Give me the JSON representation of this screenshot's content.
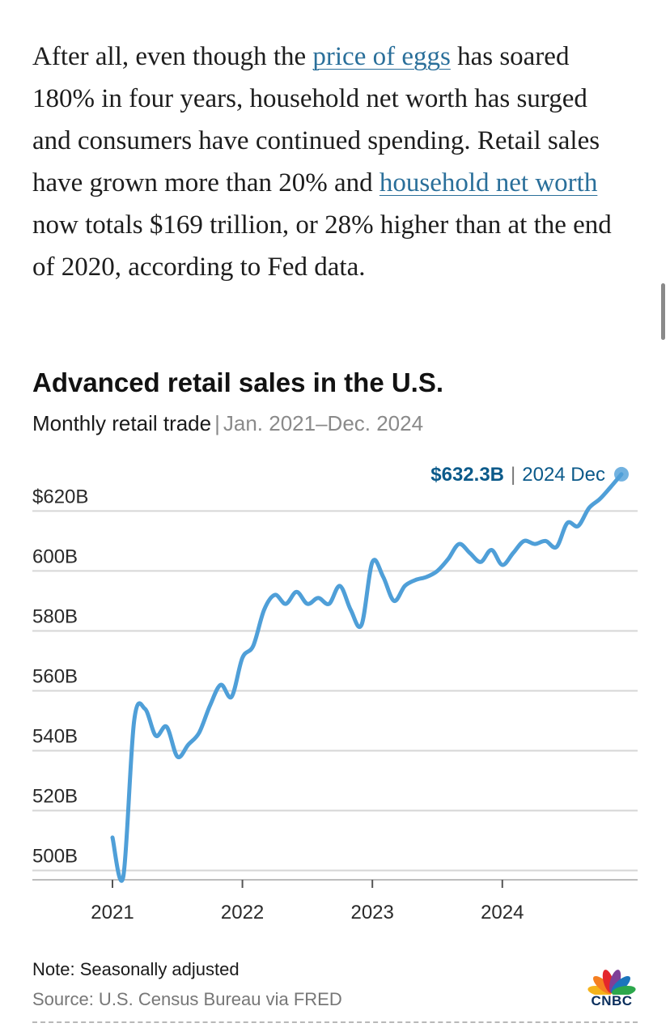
{
  "article": {
    "part1": "After all, even though the ",
    "link1": "price of eggs",
    "part2": " has soared 180% in four years, household net worth has surged and consumers have continued spending. Retail sales have grown more than 20% and ",
    "link2": "household net worth",
    "part3": " now totals $169 trillion, or 28% higher than at the end of 2020, according to Fed data."
  },
  "chart_data": {
    "type": "line",
    "title": "Advanced retail sales in the U.S.",
    "subtitle": "Monthly retail trade",
    "subtitle_sep": "|",
    "subtitle_range": "Jan. 2021–Dec. 2024",
    "xlabel": "",
    "ylabel": "",
    "ylim": [
      495,
      632
    ],
    "y_ticks": [
      620,
      600,
      580,
      560,
      540,
      520,
      500
    ],
    "y_tick_labels": [
      "$620B",
      "600B",
      "580B",
      "560B",
      "540B",
      "520B",
      "500B"
    ],
    "x_ticks": [
      2021,
      2022,
      2023,
      2024
    ],
    "x_tick_labels": [
      "2021",
      "2022",
      "2023",
      "2024"
    ],
    "grid": true,
    "color": "#4f9fd8",
    "highlight_color": "#0b5a8a",
    "series": [
      {
        "name": "Advanced retail sales",
        "x": [
          2021.0,
          2021.0833,
          2021.1667,
          2021.25,
          2021.3333,
          2021.4167,
          2021.5,
          2021.5833,
          2021.6667,
          2021.75,
          2021.8333,
          2021.9167,
          2022.0,
          2022.0833,
          2022.1667,
          2022.25,
          2022.3333,
          2022.4167,
          2022.5,
          2022.5833,
          2022.6667,
          2022.75,
          2022.8333,
          2022.9167,
          2023.0,
          2023.0833,
          2023.1667,
          2023.25,
          2023.3333,
          2023.4167,
          2023.5,
          2023.5833,
          2023.6667,
          2023.75,
          2023.8333,
          2023.9167,
          2024.0,
          2024.0833,
          2024.1667,
          2024.25,
          2024.3333,
          2024.4167,
          2024.5,
          2024.5833,
          2024.6667,
          2024.75,
          2024.8333,
          2024.9167
        ],
        "values": [
          511,
          498,
          550,
          554,
          545,
          548,
          538,
          542,
          546,
          555,
          562,
          558,
          571,
          575,
          587,
          592,
          589,
          593,
          589,
          591,
          589,
          595,
          587,
          582,
          603,
          598,
          590,
          595,
          597,
          598,
          600,
          604,
          609,
          606,
          603,
          607,
          602,
          606,
          610,
          609,
          610,
          608,
          616,
          615,
          621,
          624,
          628,
          632.3
        ]
      }
    ],
    "annotation": {
      "value_label": "$632.3B",
      "separator": "|",
      "period_label": "2024 Dec"
    },
    "note": "Note: Seasonally adjusted",
    "source": "Source: U.S. Census Bureau via FRED"
  },
  "logo": {
    "text": "CNBC",
    "colors": [
      "#f5b31b",
      "#f57f21",
      "#e4262c",
      "#7f3f98",
      "#1b75bc",
      "#2ca74b"
    ]
  }
}
